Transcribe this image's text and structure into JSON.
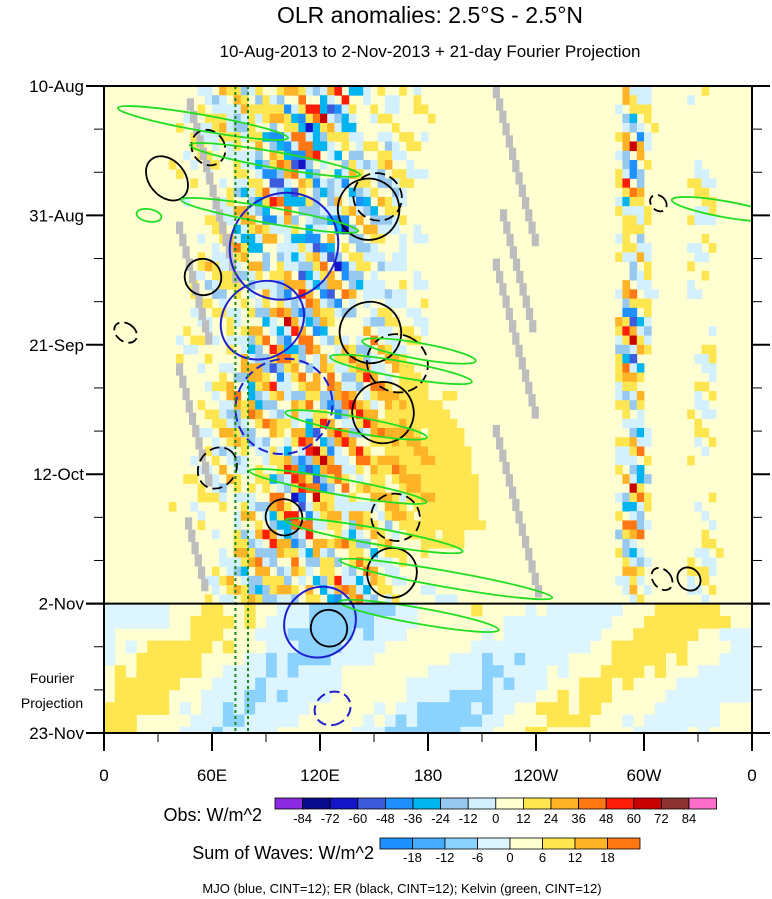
{
  "chart_data": {
    "type": "heatmap",
    "title": "OLR anomalies: 2.5°S - 2.5°N",
    "subtitle": "10-Aug-2013 to 2-Nov-2013 + 21-day Fourier Projection",
    "x_ticks": [
      "0",
      "60E",
      "120E",
      "180",
      "120W",
      "60W",
      "0"
    ],
    "x_range_deg_east": [
      0,
      360
    ],
    "y_ticks": [
      "10-Aug",
      "31-Aug",
      "21-Sep",
      "12-Oct",
      "2-Nov",
      "23-Nov"
    ],
    "y_range_days": [
      0,
      105
    ],
    "projection_start_day": 84,
    "projection_label_line1": "Fourier",
    "projection_label_line2": "Projection",
    "obs_colorbar": {
      "label": "Obs: W/m^2",
      "levels": [
        "-84",
        "-72",
        "-60",
        "-48",
        "-36",
        "-24",
        "-12",
        "0",
        "12",
        "24",
        "36",
        "48",
        "60",
        "72",
        "84"
      ],
      "colors": [
        "#8a2be2",
        "#0a0a8c",
        "#1414c8",
        "#3c5adc",
        "#1e90ff",
        "#00b4f0",
        "#96c8f0",
        "#d2f0ff",
        "#ffffd2",
        "#ffe650",
        "#ffb428",
        "#ff7814",
        "#ff1e0a",
        "#c80000",
        "#8c3232",
        "#ff6ec8"
      ]
    },
    "waves_colorbar": {
      "label": "Sum of Waves: W/m^2",
      "levels": [
        "-18",
        "-12",
        "-6",
        "0",
        "6",
        "12",
        "18"
      ],
      "colors": [
        "#1e90ff",
        "#46aaff",
        "#8cd2ff",
        "#dcf5ff",
        "#ffffd2",
        "#ffe650",
        "#ffb428",
        "#ff7814"
      ]
    },
    "footnote": "MJO (blue, CINT=12); ER (black, CINT=12); Kelvin (green, CINT=12)",
    "reference_lines_deg_east": [
      73,
      80
    ],
    "contours": {
      "mjo_blue": [
        {
          "lon": 100,
          "day": 26,
          "a": 29,
          "b": 9,
          "rot": 52,
          "dash": false
        },
        {
          "lon": 88,
          "day": 38,
          "a": 21,
          "b": 7,
          "rot": 58,
          "dash": false
        },
        {
          "lon": 100,
          "day": 52,
          "a": 26,
          "b": 8,
          "rot": 55,
          "dash": true
        },
        {
          "lon": 120,
          "day": 87,
          "a": 19,
          "b": 6,
          "rot": 50,
          "dash": false
        },
        {
          "lon": 127,
          "day": 101,
          "a": 9,
          "b": 3,
          "rot": 60,
          "dash": true
        }
      ],
      "er_black": [
        {
          "lon": 147,
          "day": 20,
          "a": 17,
          "b": 5,
          "rot": -60,
          "dash": false
        },
        {
          "lon": 152,
          "day": 18,
          "a": 13,
          "b": 4,
          "rot": -58,
          "dash": true
        },
        {
          "lon": 35,
          "day": 15,
          "a": 10,
          "b": 4,
          "rot": -40,
          "dash": false
        },
        {
          "lon": 58,
          "day": 10,
          "a": 9,
          "b": 3,
          "rot": -35,
          "dash": true
        },
        {
          "lon": 55,
          "day": 31,
          "a": 10,
          "b": 3,
          "rot": -55,
          "dash": false
        },
        {
          "lon": 12,
          "day": 40,
          "a": 5,
          "b": 2,
          "rot": -55,
          "dash": true
        },
        {
          "lon": 148,
          "day": 40,
          "a": 17,
          "b": 5,
          "rot": -62,
          "dash": false
        },
        {
          "lon": 163,
          "day": 45,
          "a": 16,
          "b": 5,
          "rot": -65,
          "dash": true
        },
        {
          "lon": 155,
          "day": 53,
          "a": 17,
          "b": 5,
          "rot": -62,
          "dash": false
        },
        {
          "lon": 63,
          "day": 62,
          "a": 12,
          "b": 3,
          "rot": -55,
          "dash": true
        },
        {
          "lon": 100,
          "day": 70,
          "a": 10,
          "b": 3,
          "rot": -55,
          "dash": false
        },
        {
          "lon": 162,
          "day": 70,
          "a": 13,
          "b": 4,
          "rot": -62,
          "dash": true
        },
        {
          "lon": 160,
          "day": 79,
          "a": 14,
          "b": 4,
          "rot": -50,
          "dash": false
        },
        {
          "lon": 125,
          "day": 88,
          "a": 10,
          "b": 3,
          "rot": -35,
          "dash": false
        },
        {
          "lon": 308,
          "day": 19,
          "a": 4,
          "b": 1.5,
          "rot": -45,
          "dash": true
        },
        {
          "lon": 310,
          "day": 80,
          "a": 5,
          "b": 2,
          "rot": -40,
          "dash": true
        },
        {
          "lon": 325,
          "day": 80,
          "a": 6,
          "b": 2,
          "rot": -45,
          "dash": false
        }
      ],
      "kelvin_green": [
        {
          "lon": 55,
          "day": 6,
          "a": 48,
          "b": 1.3,
          "rot": 10,
          "dash": false
        },
        {
          "lon": 95,
          "day": 12,
          "a": 48,
          "b": 1.3,
          "rot": 10,
          "dash": false
        },
        {
          "lon": 92,
          "day": 21,
          "a": 50,
          "b": 1.3,
          "rot": 10,
          "dash": false
        },
        {
          "lon": 165,
          "day": 46,
          "a": 40,
          "b": 1.3,
          "rot": 10,
          "dash": false
        },
        {
          "lon": 175,
          "day": 43,
          "a": 32,
          "b": 1.3,
          "rot": 10,
          "dash": false
        },
        {
          "lon": 140,
          "day": 55,
          "a": 40,
          "b": 1.3,
          "rot": 10,
          "dash": false
        },
        {
          "lon": 130,
          "day": 65,
          "a": 50,
          "b": 1.3,
          "rot": 10,
          "dash": false
        },
        {
          "lon": 150,
          "day": 73,
          "a": 50,
          "b": 1.3,
          "rot": 10,
          "dash": false
        },
        {
          "lon": 190,
          "day": 80,
          "a": 60,
          "b": 1.3,
          "rot": 10,
          "dash": false
        },
        {
          "lon": 175,
          "day": 86,
          "a": 45,
          "b": 1.3,
          "rot": 10,
          "dash": false
        },
        {
          "lon": 345,
          "day": 20,
          "a": 30,
          "b": 1.3,
          "rot": 10,
          "dash": false
        },
        {
          "lon": 25,
          "day": 21,
          "a": 7,
          "b": 1,
          "rot": 10,
          "dash": false
        }
      ]
    }
  }
}
